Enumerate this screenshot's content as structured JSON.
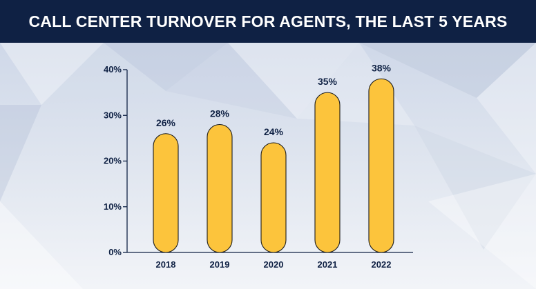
{
  "header": {
    "title": "CALL CENTER TURNOVER FOR AGENTS, THE LAST 5 YEARS"
  },
  "colors": {
    "header_bg": "#0f2144",
    "bar_fill": "#fcc43c",
    "bar_stroke": "#1a1a1a",
    "text": "#0f2144",
    "axis": "#0f2144"
  },
  "chart_data": {
    "type": "bar",
    "title": "CALL CENTER TURNOVER FOR AGENTS, THE LAST 5 YEARS",
    "categories": [
      "2018",
      "2019",
      "2020",
      "2021",
      "2022"
    ],
    "values": [
      26,
      28,
      24,
      35,
      38
    ],
    "value_labels": [
      "26%",
      "28%",
      "24%",
      "35%",
      "38%"
    ],
    "ylim": [
      0,
      40
    ],
    "yticks": [
      0,
      10,
      20,
      30,
      40
    ],
    "ytick_labels": [
      "0%",
      "10%",
      "20%",
      "30%",
      "40%"
    ],
    "xlabel": "",
    "ylabel": "",
    "grid": false,
    "legend": "none"
  }
}
